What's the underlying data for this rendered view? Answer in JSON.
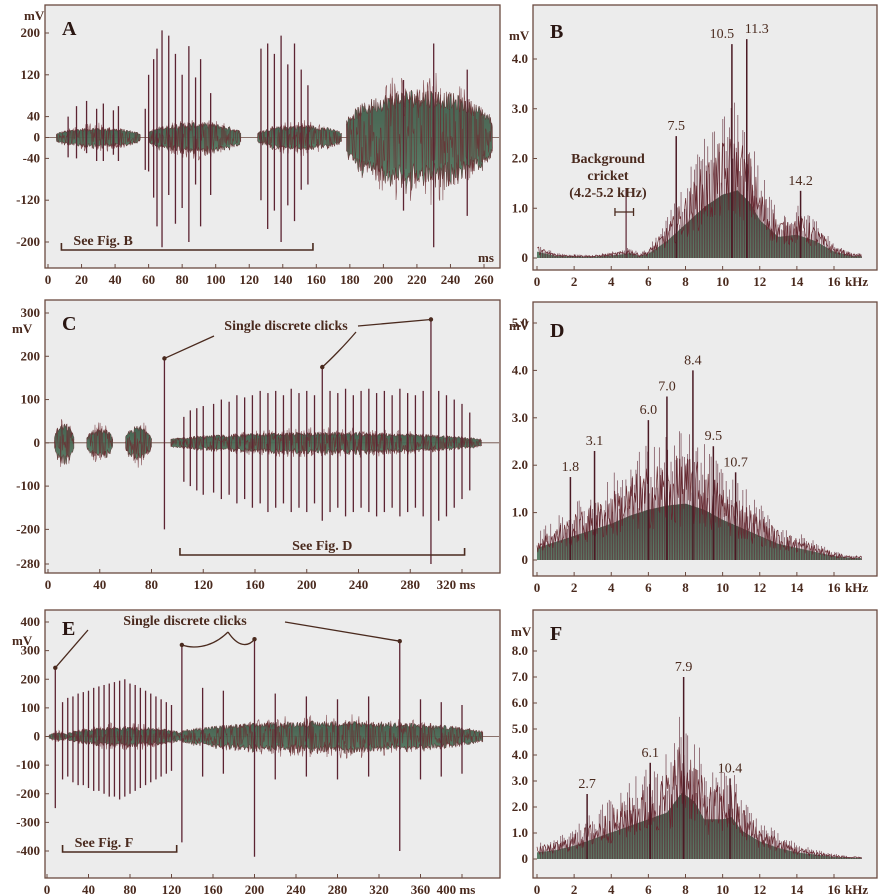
{
  "chart_data": [
    {
      "panel": "A",
      "type": "line",
      "trace": "waveform",
      "y_unit": "mV",
      "x_unit": "ms",
      "xlim": [
        0,
        265
      ],
      "ylim": [
        -250,
        250
      ],
      "x_ticks": [
        "0",
        "20",
        "40",
        "60",
        "80",
        "100",
        "120",
        "140",
        "160",
        "180",
        "200",
        "220",
        "240",
        "260"
      ],
      "y_ticks": [
        "200",
        "120",
        "40",
        "0",
        "-40",
        "-120",
        "-200"
      ],
      "bracket_label": "See Fig. B",
      "bracket_range": [
        8,
        158
      ],
      "bursts": [
        [
          5,
          55,
          20
        ],
        [
          60,
          115,
          30
        ],
        [
          125,
          175,
          25
        ],
        [
          178,
          265,
          95
        ]
      ],
      "spikes": [
        [
          12,
          40,
          -38
        ],
        [
          17,
          60,
          -40
        ],
        [
          23,
          70,
          -30
        ],
        [
          29,
          55,
          -45
        ],
        [
          33,
          65,
          -45
        ],
        [
          39,
          52,
          -33
        ],
        [
          42,
          60,
          -45
        ],
        [
          58,
          55,
          -62
        ],
        [
          60,
          120,
          -65
        ],
        [
          63,
          150,
          -115
        ],
        [
          65,
          170,
          -170
        ],
        [
          68,
          205,
          -210
        ],
        [
          72,
          195,
          -110
        ],
        [
          76,
          160,
          -165
        ],
        [
          80,
          120,
          -135
        ],
        [
          84,
          175,
          -200
        ],
        [
          88,
          115,
          -90
        ],
        [
          91,
          150,
          -170
        ],
        [
          97,
          85,
          -110
        ],
        [
          127,
          170,
          -120
        ],
        [
          131,
          180,
          -175
        ],
        [
          135,
          160,
          -140
        ],
        [
          139,
          195,
          -200
        ],
        [
          143,
          140,
          -130
        ],
        [
          147,
          180,
          -160
        ],
        [
          151,
          130,
          -100
        ],
        [
          155,
          100,
          -90
        ],
        [
          212,
          110,
          -140
        ],
        [
          230,
          180,
          -210
        ],
        [
          250,
          130,
          -150
        ]
      ]
    },
    {
      "panel": "B",
      "type": "line",
      "trace": "spectrum",
      "y_unit": "mV",
      "x_unit": "kHz",
      "xlim": [
        0,
        17.5
      ],
      "ylim": [
        0,
        4.6
      ],
      "x_ticks": [
        "0",
        "2",
        "4",
        "6",
        "8",
        "10",
        "12",
        "14",
        "16"
      ],
      "y_ticks": [
        "0",
        "1.0",
        "2.0",
        "3.0",
        "4.0"
      ],
      "peaks": [
        {
          "x": 7.5,
          "y": 2.45,
          "label": "7.5"
        },
        {
          "x": 10.5,
          "y": 4.3,
          "label": "10.5"
        },
        {
          "x": 11.3,
          "y": 4.4,
          "label": "11.3"
        },
        {
          "x": 14.2,
          "y": 1.35,
          "label": "14.2"
        }
      ],
      "annotation": [
        "Background",
        "cricket",
        "(4.2-5.2 kHz)"
      ],
      "envelope": [
        [
          0,
          0.15
        ],
        [
          0.5,
          0.1
        ],
        [
          1,
          0.05
        ],
        [
          3,
          0.03
        ],
        [
          4.5,
          0.08
        ],
        [
          5,
          0.12
        ],
        [
          5.5,
          0.05
        ],
        [
          6,
          0.1
        ],
        [
          7,
          0.4
        ],
        [
          8,
          0.8
        ],
        [
          9,
          1.2
        ],
        [
          10,
          1.5
        ],
        [
          10.8,
          1.6
        ],
        [
          11.5,
          1.3
        ],
        [
          12,
          0.9
        ],
        [
          13,
          0.5
        ],
        [
          14,
          0.55
        ],
        [
          15,
          0.4
        ],
        [
          16,
          0.15
        ],
        [
          17,
          0.05
        ]
      ],
      "spikes": [
        [
          4.8,
          1.4
        ]
      ]
    },
    {
      "panel": "C",
      "type": "line",
      "trace": "waveform",
      "y_unit": "mV",
      "x_unit": "ms",
      "xlim": [
        0,
        340
      ],
      "ylim": [
        -300,
        310
      ],
      "x_ticks": [
        "0",
        "40",
        "80",
        "120",
        "160",
        "200",
        "240",
        "280",
        "320 ms"
      ],
      "y_ticks": [
        "300",
        "200",
        "100",
        "0",
        "-100",
        "-200",
        "-280"
      ],
      "annotation": "Single discrete clicks",
      "bracket_label": "See Fig. D",
      "bracket_range": [
        102,
        322
      ],
      "bursts": [
        [
          5,
          20,
          45
        ],
        [
          30,
          50,
          35
        ],
        [
          60,
          80,
          40
        ],
        [
          95,
          335,
          25
        ]
      ],
      "spikes": [
        [
          90,
          200,
          -200
        ],
        [
          105,
          60,
          -90
        ],
        [
          110,
          75,
          -100
        ],
        [
          115,
          80,
          -110
        ],
        [
          120,
          85,
          -120
        ],
        [
          128,
          90,
          -115
        ],
        [
          134,
          100,
          -130
        ],
        [
          140,
          95,
          -120
        ],
        [
          146,
          110,
          -140
        ],
        [
          152,
          105,
          -130
        ],
        [
          158,
          110,
          -150
        ],
        [
          164,
          120,
          -140
        ],
        [
          170,
          115,
          -160
        ],
        [
          176,
          120,
          -150
        ],
        [
          182,
          110,
          -140
        ],
        [
          188,
          125,
          -160
        ],
        [
          194,
          115,
          -150
        ],
        [
          200,
          120,
          -160
        ],
        [
          206,
          110,
          -140
        ],
        [
          212,
          180,
          -180
        ],
        [
          218,
          120,
          -160
        ],
        [
          224,
          115,
          -150
        ],
        [
          230,
          125,
          -170
        ],
        [
          236,
          110,
          -160
        ],
        [
          242,
          120,
          -150
        ],
        [
          248,
          125,
          -160
        ],
        [
          254,
          115,
          -170
        ],
        [
          260,
          120,
          -160
        ],
        [
          266,
          110,
          -150
        ],
        [
          272,
          125,
          -170
        ],
        [
          278,
          115,
          -160
        ],
        [
          284,
          110,
          -150
        ],
        [
          290,
          120,
          -170
        ],
        [
          296,
          290,
          -280
        ],
        [
          302,
          120,
          -180
        ],
        [
          308,
          110,
          -170
        ],
        [
          314,
          100,
          -150
        ],
        [
          320,
          90,
          -130
        ],
        [
          326,
          70,
          -110
        ]
      ]
    },
    {
      "panel": "D",
      "type": "line",
      "trace": "spectrum",
      "y_unit": "mV",
      "x_unit": "kHz",
      "xlim": [
        0,
        17.5
      ],
      "ylim": [
        0,
        5.3
      ],
      "x_ticks": [
        "0",
        "2",
        "4",
        "6",
        "8",
        "10",
        "12",
        "14",
        "16"
      ],
      "y_ticks": [
        "0",
        "1.0",
        "2.0",
        "3.0",
        "4.0",
        "5.0"
      ],
      "peaks": [
        {
          "x": 1.8,
          "y": 1.75,
          "label": "1.8"
        },
        {
          "x": 3.1,
          "y": 2.3,
          "label": "3.1"
        },
        {
          "x": 6.0,
          "y": 2.95,
          "label": "6.0"
        },
        {
          "x": 7.0,
          "y": 3.45,
          "label": "7.0"
        },
        {
          "x": 8.4,
          "y": 4.0,
          "label": "8.4"
        },
        {
          "x": 9.5,
          "y": 2.4,
          "label": "9.5"
        },
        {
          "x": 10.7,
          "y": 1.85,
          "label": "10.7"
        }
      ],
      "envelope": [
        [
          0,
          0.3
        ],
        [
          1,
          0.45
        ],
        [
          2,
          0.6
        ],
        [
          3,
          0.75
        ],
        [
          4,
          0.9
        ],
        [
          5,
          1.1
        ],
        [
          6,
          1.25
        ],
        [
          7,
          1.35
        ],
        [
          8,
          1.4
        ],
        [
          9,
          1.25
        ],
        [
          10,
          1.0
        ],
        [
          11,
          0.8
        ],
        [
          12,
          0.6
        ],
        [
          13,
          0.4
        ],
        [
          14,
          0.3
        ],
        [
          15,
          0.2
        ],
        [
          16,
          0.1
        ],
        [
          17,
          0.05
        ]
      ],
      "spikes": []
    },
    {
      "panel": "E",
      "type": "line",
      "trace": "waveform",
      "y_unit": "mV",
      "x_unit": "ms",
      "xlim": [
        0,
        420
      ],
      "ylim": [
        -440,
        430
      ],
      "x_ticks": [
        "0",
        "40",
        "80",
        "120",
        "160",
        "200",
        "240",
        "280",
        "320",
        "360",
        "400 ms"
      ],
      "y_ticks": [
        "400",
        "300",
        "200",
        "100",
        "0",
        "-100",
        "-200",
        "-300",
        "-400"
      ],
      "annotation": "Single discrete clicks",
      "bracket_label": "See Fig. F",
      "bracket_range": [
        15,
        125
      ],
      "bursts": [
        [
          2,
          20,
          15
        ],
        [
          20,
          130,
          35
        ],
        [
          130,
          420,
          55
        ]
      ],
      "spikes": [
        [
          8,
          240,
          -250
        ],
        [
          15,
          120,
          -150
        ],
        [
          20,
          135,
          -140
        ],
        [
          25,
          140,
          -160
        ],
        [
          30,
          150,
          -170
        ],
        [
          35,
          155,
          -170
        ],
        [
          40,
          160,
          -180
        ],
        [
          45,
          170,
          -190
        ],
        [
          50,
          175,
          -190
        ],
        [
          55,
          180,
          -200
        ],
        [
          60,
          185,
          -210
        ],
        [
          65,
          190,
          -210
        ],
        [
          70,
          195,
          -220
        ],
        [
          75,
          200,
          -210
        ],
        [
          80,
          185,
          -200
        ],
        [
          85,
          180,
          -190
        ],
        [
          90,
          170,
          -180
        ],
        [
          95,
          160,
          -170
        ],
        [
          100,
          150,
          -160
        ],
        [
          105,
          140,
          -150
        ],
        [
          110,
          130,
          -140
        ],
        [
          115,
          120,
          -130
        ],
        [
          120,
          110,
          -120
        ],
        [
          130,
          320,
          -370
        ],
        [
          150,
          170,
          -140
        ],
        [
          170,
          160,
          -130
        ],
        [
          200,
          340,
          -420
        ],
        [
          220,
          150,
          -150
        ],
        [
          250,
          140,
          -140
        ],
        [
          280,
          130,
          -150
        ],
        [
          310,
          140,
          -140
        ],
        [
          340,
          340,
          -400
        ],
        [
          360,
          130,
          -150
        ],
        [
          380,
          120,
          -140
        ],
        [
          400,
          110,
          -130
        ]
      ]
    },
    {
      "panel": "F",
      "type": "line",
      "trace": "spectrum",
      "y_unit": "mV",
      "x_unit": "kHz",
      "xlim": [
        0,
        17.5
      ],
      "ylim": [
        0,
        8.8
      ],
      "x_ticks": [
        "0",
        "2",
        "4",
        "6",
        "8",
        "10",
        "12",
        "14",
        "16"
      ],
      "y_ticks": [
        "0",
        "1.0",
        "2.0",
        "3.0",
        "4.0",
        "5.0",
        "6.0",
        "7.0",
        "8.0"
      ],
      "peaks": [
        {
          "x": 2.7,
          "y": 2.5,
          "label": "2.7"
        },
        {
          "x": 6.1,
          "y": 3.7,
          "label": "6.1"
        },
        {
          "x": 7.9,
          "y": 7.0,
          "label": "7.9"
        },
        {
          "x": 10.4,
          "y": 3.1,
          "label": "10.4"
        }
      ],
      "envelope": [
        [
          0,
          0.3
        ],
        [
          1,
          0.4
        ],
        [
          2,
          0.6
        ],
        [
          3,
          0.9
        ],
        [
          4,
          1.2
        ],
        [
          5,
          1.5
        ],
        [
          6,
          1.8
        ],
        [
          7,
          2.1
        ],
        [
          7.8,
          3.0
        ],
        [
          8.5,
          2.6
        ],
        [
          9,
          1.8
        ],
        [
          10,
          1.8
        ],
        [
          10.5,
          1.9
        ],
        [
          11,
          1.3
        ],
        [
          12,
          0.8
        ],
        [
          13,
          0.5
        ],
        [
          14,
          0.3
        ],
        [
          15,
          0.2
        ],
        [
          16,
          0.1
        ],
        [
          17,
          0.05
        ]
      ],
      "spikes": []
    }
  ]
}
